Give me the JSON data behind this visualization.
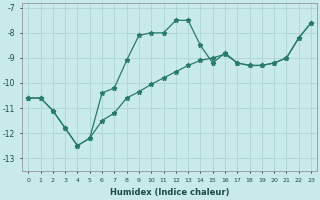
{
  "xlabel": "Humidex (Indice chaleur)",
  "background_color": "#c8eaea",
  "grid_color": "#aed4d4",
  "line_color": "#2a7a6a",
  "xlim": [
    -0.5,
    23.5
  ],
  "ylim": [
    -13.5,
    -6.8
  ],
  "yticks": [
    -13,
    -12,
    -11,
    -10,
    -9,
    -8,
    -7
  ],
  "xticks": [
    0,
    1,
    2,
    3,
    4,
    5,
    6,
    7,
    8,
    9,
    10,
    11,
    12,
    13,
    14,
    15,
    16,
    17,
    18,
    19,
    20,
    21,
    22,
    23
  ],
  "line1_x": [
    0,
    1,
    2,
    3,
    4,
    5,
    6,
    7,
    8,
    9,
    10,
    11,
    12,
    13,
    14,
    15,
    16,
    17,
    18,
    19,
    20,
    21,
    22,
    23
  ],
  "line1_y": [
    -10.6,
    -10.6,
    -11.1,
    -11.8,
    -12.5,
    -12.2,
    -10.4,
    -10.2,
    -9.1,
    -8.1,
    -8.0,
    -8.0,
    -7.5,
    -7.5,
    -8.5,
    -9.2,
    -8.8,
    -9.2,
    -9.3,
    -9.3,
    -9.2,
    -9.0,
    -8.2,
    -7.6
  ],
  "line2_x": [
    0,
    1,
    2,
    3,
    4,
    5,
    6,
    7,
    8,
    9,
    10,
    11,
    12,
    13,
    14,
    15,
    16,
    17,
    18,
    19,
    20,
    21,
    22,
    23
  ],
  "line2_y": [
    -10.6,
    -10.6,
    -11.1,
    -11.8,
    -12.5,
    -12.2,
    -11.5,
    -11.2,
    -10.6,
    -10.35,
    -10.05,
    -9.8,
    -9.55,
    -9.3,
    -9.1,
    -9.0,
    -8.85,
    -9.2,
    -9.3,
    -9.3,
    -9.2,
    -9.0,
    -8.2,
    -7.6
  ]
}
